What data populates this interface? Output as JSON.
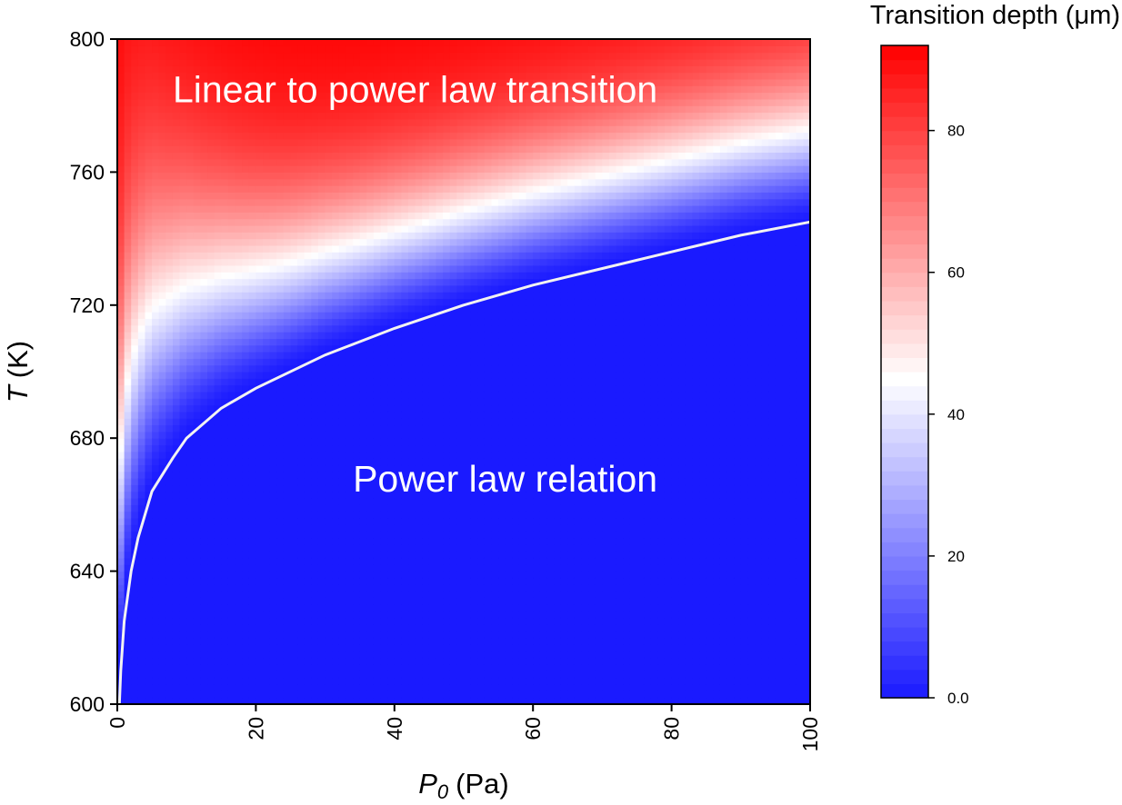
{
  "chart_data": {
    "type": "heatmap",
    "title": "",
    "x": {
      "label_var": "P",
      "label_sub": "0",
      "label_unit": "(Pa)",
      "range": [
        0,
        100
      ],
      "ticks": [
        0,
        20,
        40,
        60,
        80,
        100
      ],
      "tick_labels": [
        "0",
        "20",
        "40",
        "60",
        "80",
        "100"
      ]
    },
    "y": {
      "label_var": "T",
      "label_unit": "(K)",
      "range": [
        600,
        800
      ],
      "ticks": [
        600,
        640,
        680,
        720,
        760,
        800
      ],
      "tick_labels": [
        "600",
        "640",
        "680",
        "720",
        "760",
        "800"
      ]
    },
    "colorbar": {
      "title": "Transition depth (μm)",
      "range": [
        0,
        92
      ],
      "ticks": [
        0,
        20,
        40,
        60,
        80
      ],
      "tick_labels": [
        "0.0",
        "20",
        "40",
        "60",
        "80"
      ],
      "low_color": "#1a1aff",
      "mid_color": "#ffffff",
      "high_color": "#ff0000",
      "mid_value": 45
    },
    "annotations": [
      {
        "text": "Linear to power law transition",
        "x": 8,
        "y": 781
      },
      {
        "text": "Power law relation",
        "x": 34,
        "y": 664
      }
    ],
    "boundary_curve": {
      "description": "white contour separating regions",
      "points": [
        [
          0.3,
          600
        ],
        [
          0.5,
          610
        ],
        [
          1,
          625
        ],
        [
          2,
          640
        ],
        [
          3,
          650
        ],
        [
          5,
          664
        ],
        [
          8,
          674
        ],
        [
          10,
          680
        ],
        [
          15,
          689
        ],
        [
          20,
          695
        ],
        [
          30,
          705
        ],
        [
          40,
          713
        ],
        [
          50,
          720
        ],
        [
          60,
          726
        ],
        [
          70,
          731
        ],
        [
          80,
          736
        ],
        [
          90,
          741
        ],
        [
          100,
          745
        ]
      ]
    }
  }
}
